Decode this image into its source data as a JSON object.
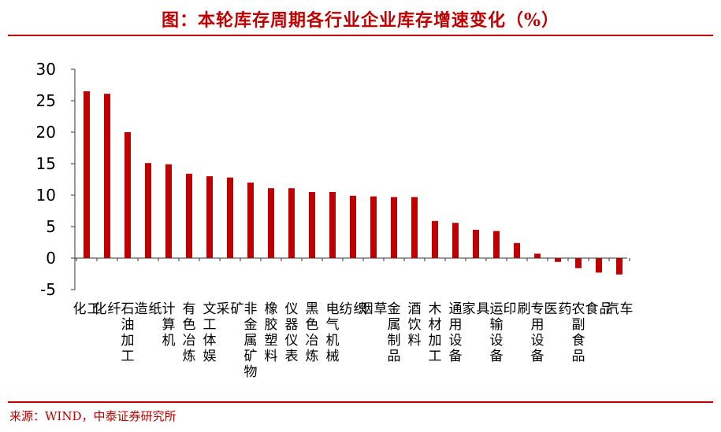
{
  "title": "图：本轮库存周期各行业企业库存增速变化（%）",
  "source": "来源：WIND，中泰证券研究所",
  "colors": {
    "bar": "#c00000",
    "title": "#c00000",
    "axis": "#333333"
  },
  "chart_data": {
    "type": "bar",
    "title": "图：本轮库存周期各行业企业库存增速变化（%）",
    "xlabel": "",
    "ylabel": "",
    "ylim": [
      -5,
      30
    ],
    "yticks": [
      "30",
      "25",
      "20",
      "15",
      "10",
      "5",
      "0",
      "-5"
    ],
    "ytick_values": [
      30,
      25,
      20,
      15,
      10,
      5,
      0,
      -5
    ],
    "grid": false,
    "categories": [
      "化工",
      "化纤",
      "石油加工",
      "造纸",
      "计算机",
      "有色冶炼",
      "文工体娱",
      "采矿",
      "非金属矿物",
      "橡胶塑料",
      "仪器仪表",
      "黑色冶炼",
      "电气机械",
      "纺织",
      "烟草",
      "金属制品",
      "酒饮料",
      "木材加工",
      "通用设备",
      "家具",
      "运输设备",
      "印刷",
      "专用设备",
      "医药",
      "农副食品",
      "食品",
      "汽车"
    ],
    "values": [
      26.5,
      26.1,
      20.0,
      15.1,
      14.9,
      13.4,
      13.0,
      12.8,
      12.0,
      11.1,
      11.1,
      10.5,
      10.5,
      9.9,
      9.8,
      9.7,
      9.7,
      5.9,
      5.6,
      4.5,
      4.3,
      2.4,
      0.7,
      -0.6,
      -1.6,
      -2.3,
      -2.6
    ]
  }
}
